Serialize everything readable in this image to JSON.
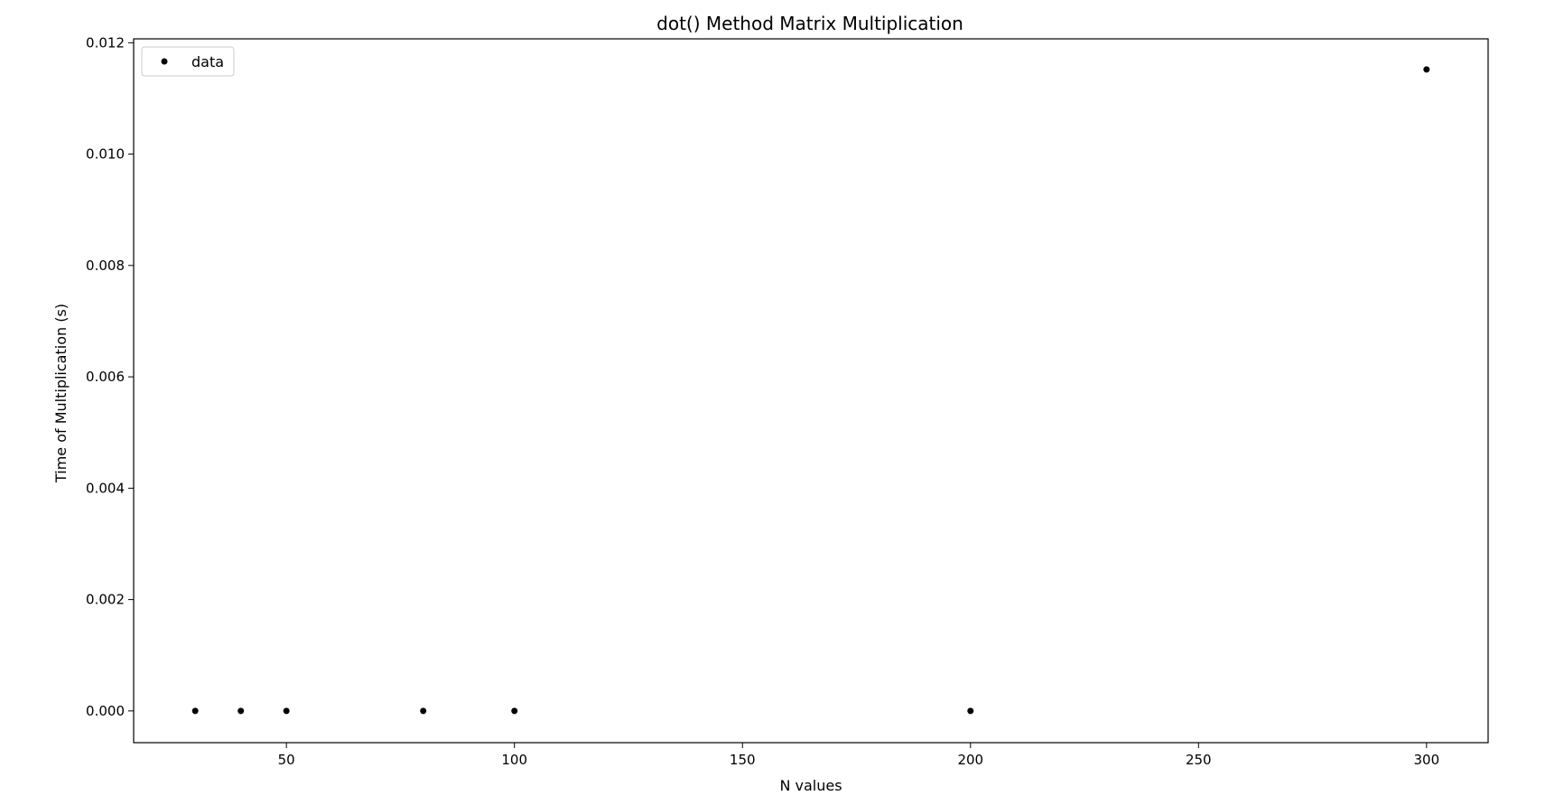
{
  "chart_data": {
    "type": "scatter",
    "title": "dot() Method Matrix Multiplication",
    "xlabel": "N values",
    "ylabel": "Time of Multiplication (s)",
    "xlim": [
      16.5,
      313.5
    ],
    "ylim": [
      -0.00057,
      0.01207
    ],
    "x_ticks": [
      50,
      100,
      150,
      200,
      250,
      300
    ],
    "x_tick_labels": [
      "50",
      "100",
      "150",
      "200",
      "250",
      "300"
    ],
    "y_ticks": [
      0.0,
      0.002,
      0.004,
      0.006,
      0.008,
      0.01,
      0.012
    ],
    "y_tick_labels": [
      "0.000",
      "0.002",
      "0.004",
      "0.006",
      "0.008",
      "0.010",
      "0.012"
    ],
    "grid": false,
    "legend_position": "top-left",
    "series": [
      {
        "name": "data",
        "color": "#000000",
        "marker": "dot",
        "x": [
          30,
          40,
          50,
          80,
          100,
          200,
          300
        ],
        "y": [
          0.0,
          0.0,
          0.0,
          0.0,
          0.0,
          0.0,
          0.01152
        ]
      }
    ]
  }
}
